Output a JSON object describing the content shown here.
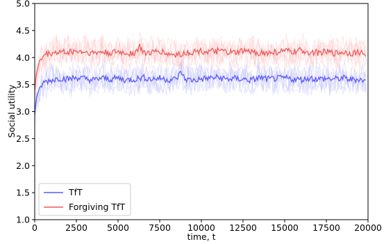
{
  "chart_data": {
    "type": "line",
    "xlabel": "time, t",
    "ylabel": "Social utility",
    "xlim": [
      0,
      20000
    ],
    "ylim": [
      1.0,
      5.0
    ],
    "xticks": [
      0,
      2500,
      5000,
      7500,
      10000,
      12500,
      15000,
      17500,
      20000
    ],
    "yticks": [
      1.0,
      1.5,
      2.0,
      2.5,
      3.0,
      3.5,
      4.0,
      4.5,
      5.0
    ],
    "grid": false,
    "legend_position": "lower-left",
    "series": [
      {
        "name": "TfT",
        "color": "#5a5aff",
        "band_color": "#b8b8ff",
        "mean": {
          "x": [
            0,
            100,
            300,
            600,
            1000,
            1500,
            2000,
            2500,
            3000,
            3500,
            4000,
            4500,
            5000,
            5500,
            6000,
            6500,
            7000,
            7500,
            8000,
            8500,
            8800,
            9000,
            9500,
            10000,
            10500,
            11000,
            11500,
            12000,
            12500,
            13000,
            13500,
            14000,
            14500,
            15000,
            15500,
            16000,
            16500,
            17000,
            17500,
            18000,
            18500,
            19000,
            19500,
            19900
          ],
          "y": [
            2.95,
            3.25,
            3.45,
            3.55,
            3.58,
            3.62,
            3.6,
            3.63,
            3.61,
            3.58,
            3.62,
            3.6,
            3.62,
            3.58,
            3.6,
            3.63,
            3.6,
            3.62,
            3.59,
            3.6,
            3.74,
            3.6,
            3.58,
            3.6,
            3.62,
            3.63,
            3.6,
            3.61,
            3.6,
            3.58,
            3.63,
            3.6,
            3.61,
            3.62,
            3.6,
            3.59,
            3.62,
            3.6,
            3.61,
            3.6,
            3.62,
            3.59,
            3.6,
            3.55
          ]
        },
        "spread_upper": 3.95,
        "spread_lower": 3.25
      },
      {
        "name": "Forgiving TfT",
        "color": "#f05a5a",
        "band_color": "#ffb8b8",
        "mean": {
          "x": [
            0,
            100,
            300,
            600,
            1000,
            1500,
            2000,
            2500,
            3000,
            3500,
            4000,
            4500,
            5000,
            5500,
            6000,
            6300,
            6500,
            7000,
            7500,
            8000,
            8500,
            9000,
            9500,
            10000,
            10500,
            11000,
            11500,
            12000,
            12500,
            13000,
            13500,
            14000,
            14500,
            15000,
            15500,
            16000,
            16500,
            17000,
            17500,
            18000,
            18500,
            19000,
            19500,
            19900
          ],
          "y": [
            3.4,
            3.7,
            3.95,
            4.05,
            4.08,
            4.1,
            4.1,
            4.12,
            4.1,
            4.08,
            4.1,
            4.08,
            4.1,
            4.08,
            4.08,
            4.2,
            4.1,
            4.08,
            4.12,
            4.06,
            4.05,
            4.08,
            4.1,
            4.12,
            4.1,
            4.12,
            4.1,
            4.08,
            4.12,
            4.1,
            4.09,
            4.08,
            4.1,
            4.12,
            4.1,
            4.13,
            4.1,
            4.09,
            4.1,
            4.08,
            4.1,
            4.08,
            4.1,
            4.05
          ]
        },
        "spread_upper": 4.45,
        "spread_lower": 3.75
      }
    ]
  }
}
